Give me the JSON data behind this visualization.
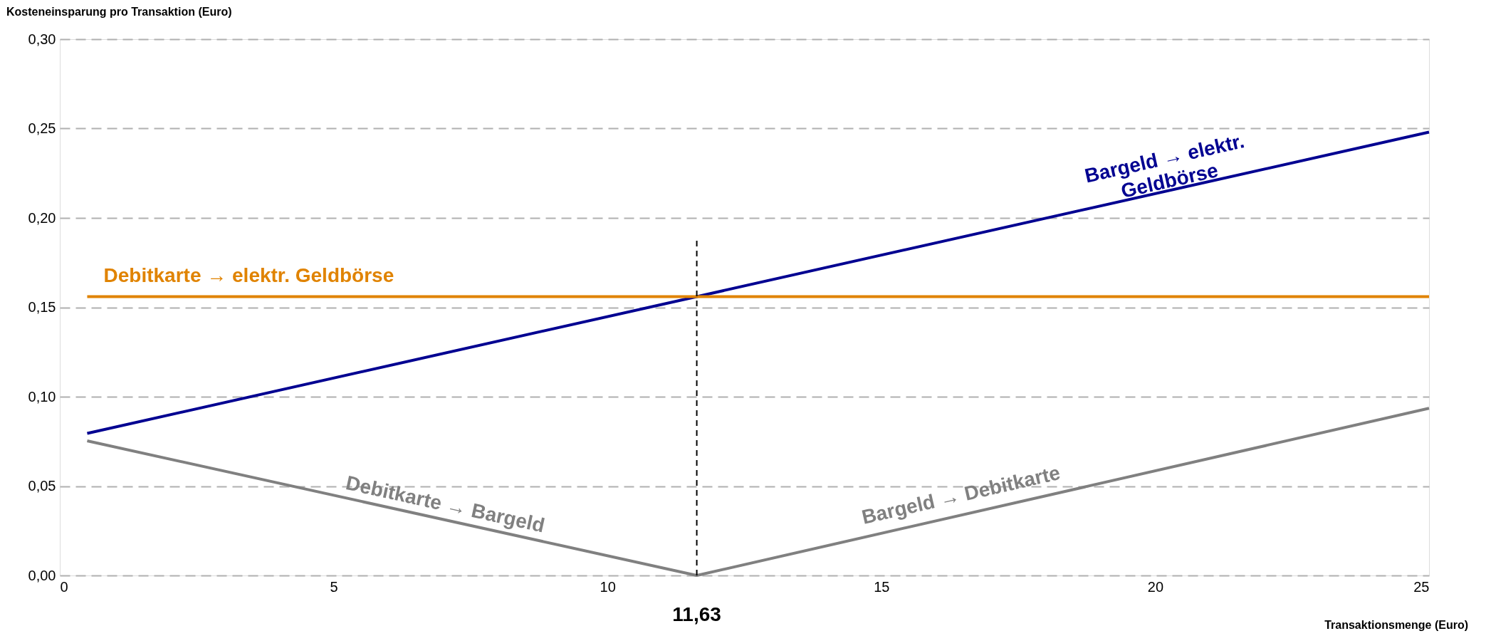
{
  "chart_data": {
    "type": "line",
    "xlabel": "Transaktionsmenge (Euro)",
    "ylabel": "Kosteneinsparung pro Transaktion (Euro)",
    "xlim": [
      0,
      25
    ],
    "xticks": [
      0,
      5,
      10,
      15,
      20,
      25
    ],
    "ylim": [
      0,
      0.3
    ],
    "yticks": [
      {
        "value": 0,
        "label": "0,00"
      },
      {
        "value": 0.05,
        "label": "0,05"
      },
      {
        "value": 0.1,
        "label": "0,10"
      },
      {
        "value": 0.15,
        "label": "0,15"
      },
      {
        "value": 0.2,
        "label": "0,20"
      },
      {
        "value": 0.25,
        "label": "0,25"
      },
      {
        "value": 0.3,
        "label": "0,30"
      }
    ],
    "grid": "y",
    "marker": "none",
    "line_style": "solid",
    "series": [
      {
        "name": "Bargeld → elektr. Geldbörse",
        "color": "#000091",
        "x": [
          0.5,
          11.63,
          25
        ],
        "values": [
          0.0795,
          0.156,
          0.248
        ]
      },
      {
        "name": "Debitkarte → elektr. Geldbörse",
        "color": "#e08300",
        "x": [
          0.5,
          25
        ],
        "values": [
          0.156,
          0.156
        ]
      },
      {
        "color": "#808080",
        "x": [
          0.5,
          11.63,
          25
        ],
        "values": [
          0.0753,
          0,
          0.0935
        ]
      },
      {
        "color": "#000000",
        "x": [
          11.63,
          11.63
        ],
        "values": [
          0,
          0.188
        ],
        "line_style": "dashed"
      }
    ],
    "annotations": [
      {
        "text": "11,63",
        "x": 11.63,
        "y": 0
      },
      "Debitkarte → Bargeld",
      "Bargeld → Debitkarte"
    ]
  }
}
